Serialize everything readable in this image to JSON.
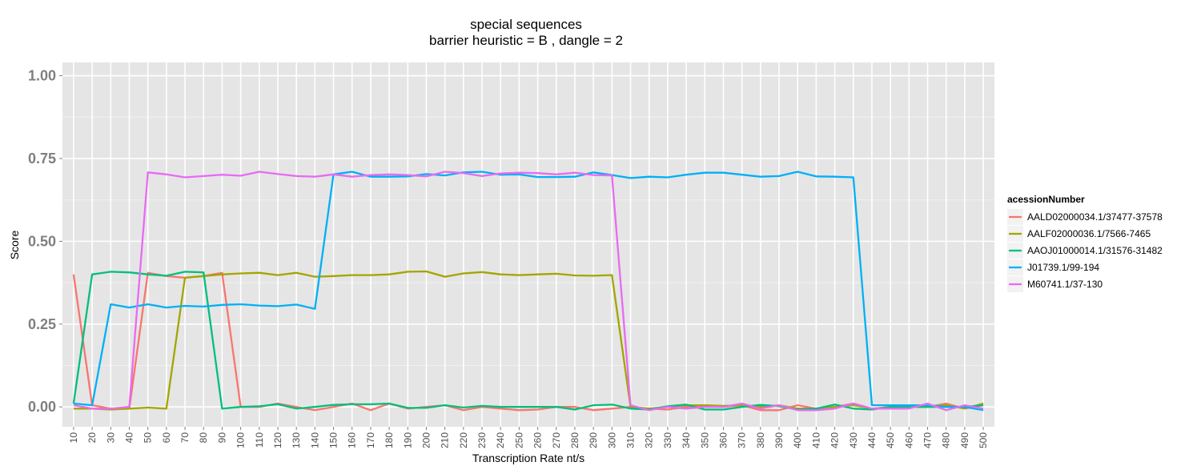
{
  "chart_data": {
    "type": "line",
    "title": "special sequences",
    "subtitle": "barrier heuristic =  B  , dangle =  2",
    "xlabel": "Transcription Rate nt/s",
    "ylabel": "Score",
    "ylim": [
      -0.06,
      1.04
    ],
    "yticks": [
      "0.00",
      "0.25",
      "0.50",
      "0.75",
      "1.00"
    ],
    "yticks_values": [
      0,
      0.25,
      0.5,
      0.75,
      1.0
    ],
    "grid": true,
    "legend_title": "acessionNumber",
    "legend_position": "right",
    "x": [
      10,
      20,
      30,
      40,
      50,
      60,
      70,
      80,
      90,
      100,
      110,
      120,
      130,
      140,
      150,
      160,
      170,
      180,
      190,
      200,
      210,
      220,
      230,
      240,
      250,
      260,
      270,
      280,
      290,
      300,
      310,
      320,
      330,
      340,
      350,
      360,
      370,
      380,
      390,
      400,
      410,
      420,
      430,
      440,
      450,
      460,
      470,
      480,
      490,
      500
    ],
    "series": [
      {
        "name": "AALD02000034.1/37477-37578",
        "color": "#F8766D",
        "values": [
          0.4,
          0.005,
          -0.005,
          -0.005,
          0.405,
          0.395,
          0.39,
          0.395,
          0.405,
          0.0,
          0.0,
          0.01,
          0.0,
          -0.01,
          0.0,
          0.01,
          -0.01,
          0.01,
          -0.005,
          0.0,
          0.005,
          -0.01,
          0.0,
          -0.005,
          -0.01,
          -0.008,
          0.0,
          0.0,
          -0.01,
          -0.005,
          0.0,
          -0.005,
          -0.008,
          0.0,
          0.005,
          0.0,
          0.005,
          -0.01,
          -0.01,
          0.005,
          -0.005,
          0.0,
          0.01,
          -0.005,
          0.0,
          0.0,
          0.0,
          0.01,
          -0.005,
          0.005
        ]
      },
      {
        "name": "AALF02000036.1/7566-7465",
        "color": "#A3A500",
        "values": [
          -0.005,
          -0.005,
          -0.008,
          -0.005,
          -0.002,
          -0.005,
          0.39,
          0.395,
          0.4,
          0.403,
          0.405,
          0.398,
          0.405,
          0.393,
          0.395,
          0.398,
          0.398,
          0.4,
          0.408,
          0.409,
          0.393,
          0.403,
          0.407,
          0.4,
          0.398,
          0.4,
          0.402,
          0.397,
          0.396,
          0.398,
          0.0,
          -0.005,
          0.0,
          0.005,
          0.005,
          0.003,
          0.005,
          0.0,
          0.005,
          -0.005,
          -0.005,
          0.0,
          0.005,
          -0.005,
          -0.005,
          0.0,
          0.0,
          0.005,
          -0.005,
          0.01
        ]
      },
      {
        "name": "AAOJ01000014.1/31576-31482",
        "color": "#00BF7D",
        "values": [
          0.01,
          0.4,
          0.408,
          0.406,
          0.4,
          0.396,
          0.408,
          0.406,
          -0.005,
          0.0,
          0.002,
          0.008,
          -0.005,
          0.0,
          0.006,
          0.008,
          0.008,
          0.01,
          -0.003,
          -0.003,
          0.005,
          -0.002,
          0.003,
          0.0,
          0.0,
          0.0,
          0.0,
          -0.008,
          0.005,
          0.007,
          -0.005,
          -0.008,
          0.002,
          0.007,
          -0.008,
          -0.008,
          0.0,
          0.006,
          0.002,
          -0.008,
          -0.005,
          0.007,
          -0.005,
          -0.008,
          0.0,
          0.0,
          0.0,
          0.0,
          0.0,
          0.005
        ]
      },
      {
        "name": "J01739.1/99-194",
        "color": "#00B0F6",
        "values": [
          0.01,
          0.005,
          0.31,
          0.3,
          0.31,
          0.3,
          0.305,
          0.303,
          0.308,
          0.31,
          0.306,
          0.304,
          0.309,
          0.296,
          0.702,
          0.71,
          0.695,
          0.695,
          0.696,
          0.703,
          0.699,
          0.708,
          0.71,
          0.701,
          0.702,
          0.694,
          0.694,
          0.695,
          0.708,
          0.7,
          0.691,
          0.695,
          0.693,
          0.701,
          0.707,
          0.707,
          0.701,
          0.695,
          0.697,
          0.71,
          0.696,
          0.695,
          0.693,
          0.005,
          0.005,
          0.005,
          0.005,
          0.0,
          0.0,
          -0.01
        ]
      },
      {
        "name": "M60741.1/37-130",
        "color": "#E76BF3",
        "values": [
          0.005,
          -0.005,
          -0.005,
          0.0,
          0.708,
          0.702,
          0.693,
          0.697,
          0.701,
          0.698,
          0.71,
          0.703,
          0.697,
          0.695,
          0.702,
          0.695,
          0.7,
          0.702,
          0.7,
          0.696,
          0.71,
          0.706,
          0.697,
          0.705,
          0.707,
          0.706,
          0.702,
          0.707,
          0.7,
          0.699,
          0.005,
          -0.01,
          0.0,
          -0.005,
          0.0,
          0.0,
          0.01,
          -0.005,
          0.005,
          -0.01,
          -0.01,
          -0.005,
          0.01,
          -0.005,
          -0.005,
          -0.005,
          0.01,
          -0.01,
          0.005,
          -0.005
        ]
      }
    ]
  }
}
